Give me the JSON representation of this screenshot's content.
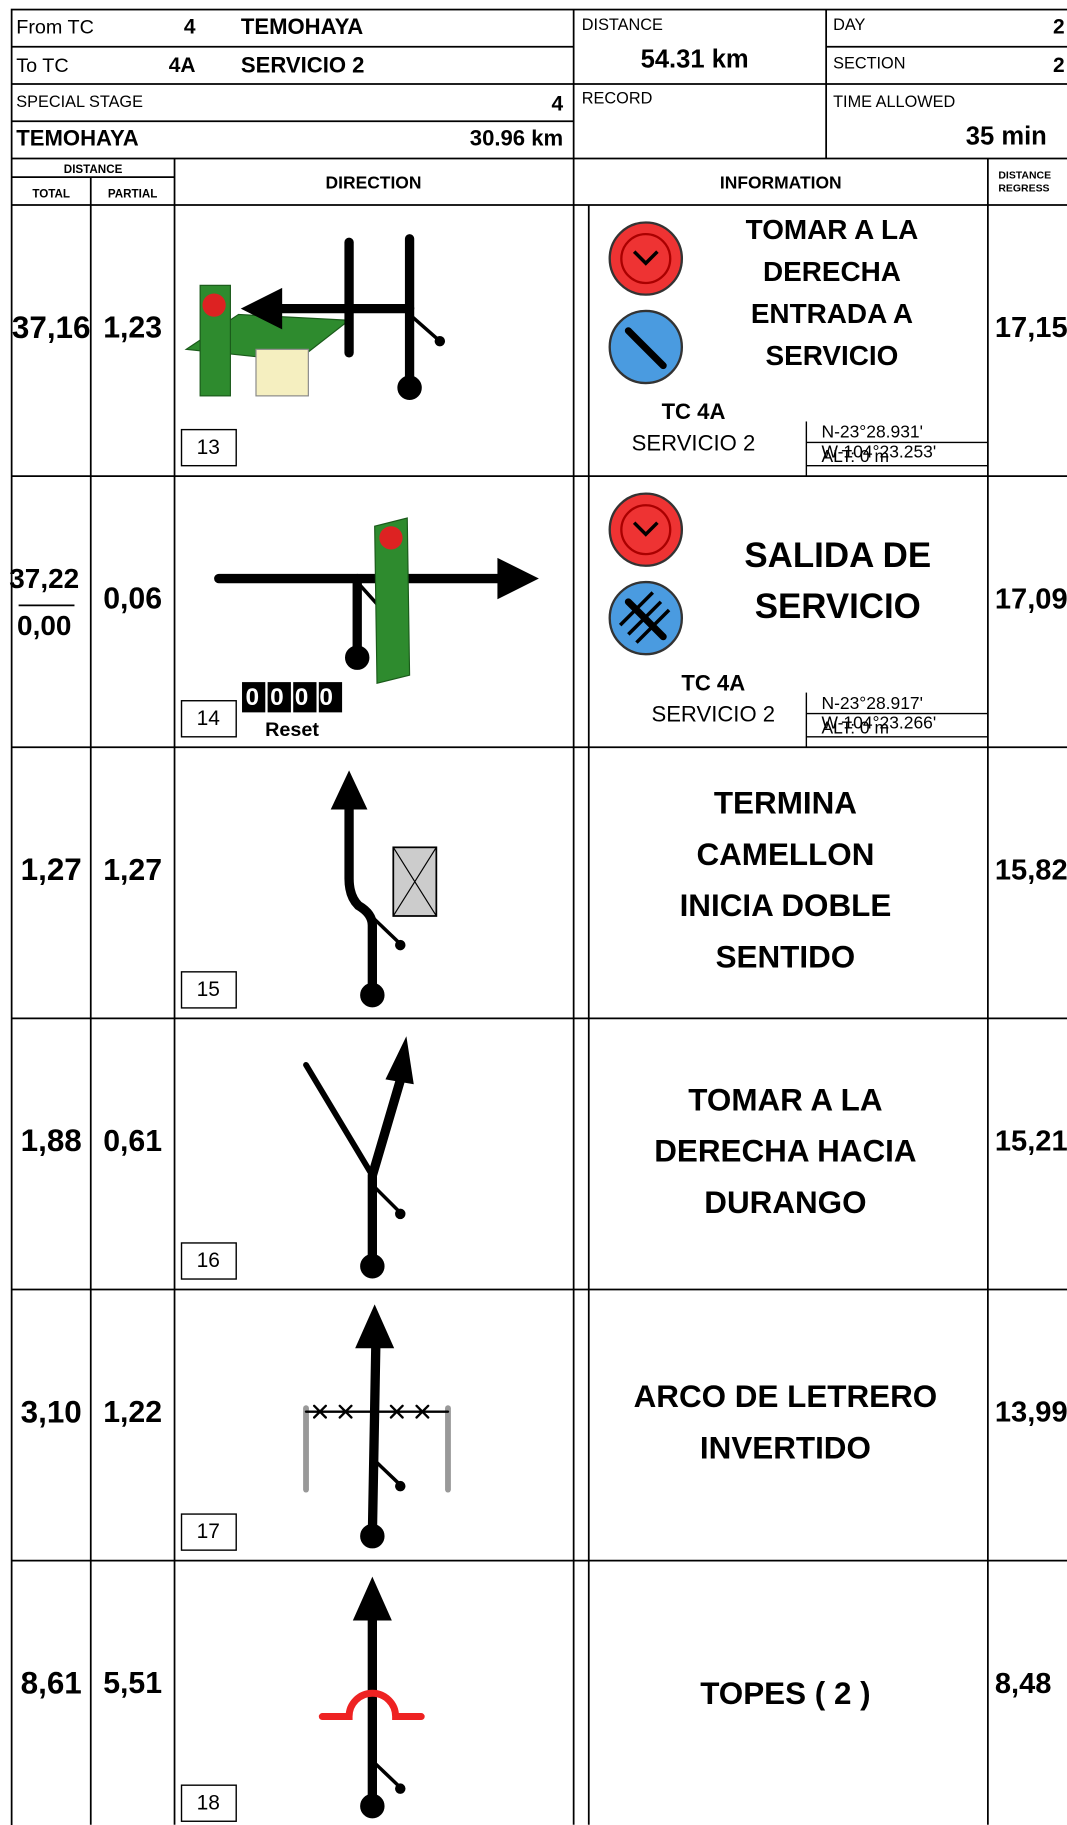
{
  "header": {
    "from_label": "From TC",
    "from_num": "4",
    "from_name": "TEMOHAYA",
    "to_label": "To TC",
    "to_num": "4A",
    "to_name": "SERVICIO 2",
    "distance_label": "DISTANCE",
    "distance": "54.31 km",
    "day_label": "DAY",
    "day": "2",
    "section_label": "SECTION",
    "section": "2",
    "special_stage_label": "SPECIAL STAGE",
    "special_stage_num": "4",
    "special_stage_name": "TEMOHAYA",
    "special_stage_distance": "30.96 km",
    "record_label": "RECORD",
    "time_allowed_label": "TIME ALLOWED",
    "time_allowed": "35 min"
  },
  "columns": {
    "distance": "DISTANCE",
    "total": "TOTAL",
    "partial": "PARTIAL",
    "direction": "DIRECTION",
    "information": "INFORMATION",
    "regress": [
      "DISTANCE",
      "REGRESS"
    ]
  },
  "rows": [
    {
      "total": "37,16",
      "partial": "1,23",
      "number": "13",
      "info": [
        "TOMAR A LA",
        "DERECHA",
        "ENTRADA A",
        "SERVICIO"
      ],
      "tc": "TC 4A",
      "tc_name": "SERVICIO 2",
      "lat": "N-23°28.931'",
      "lon": "W-104°23.253'",
      "alt": "ALT: 0 m",
      "regress": "17,15"
    },
    {
      "total": "37,22",
      "reset_total": "0,00",
      "partial": "0,06",
      "number": "14",
      "counter": "0000",
      "counter_label": "Reset",
      "info": [
        "SALIDA DE",
        "SERVICIO"
      ],
      "tc": "TC 4A",
      "tc_name": "SERVICIO 2",
      "lat": "N-23°28.917'",
      "lon": "W-104°23.266'",
      "alt": "ALT: 0 m",
      "regress": "17,09"
    },
    {
      "total": "1,27",
      "partial": "1,27",
      "number": "15",
      "info": [
        "TERMINA",
        "CAMELLON",
        "INICIA DOBLE",
        "SENTIDO"
      ],
      "regress": "15,82"
    },
    {
      "total": "1,88",
      "partial": "0,61",
      "number": "16",
      "info": [
        "TOMAR A LA",
        "DERECHA HACIA",
        "DURANGO"
      ],
      "regress": "15,21"
    },
    {
      "total": "3,10",
      "partial": "1,22",
      "number": "17",
      "info": [
        "ARCO DE LETRERO",
        "INVERTIDO"
      ],
      "regress": "13,99"
    },
    {
      "total": "8,61",
      "partial": "5,51",
      "number": "18",
      "info": [
        "TOPES ( 2 )"
      ],
      "regress": "8,48"
    }
  ]
}
